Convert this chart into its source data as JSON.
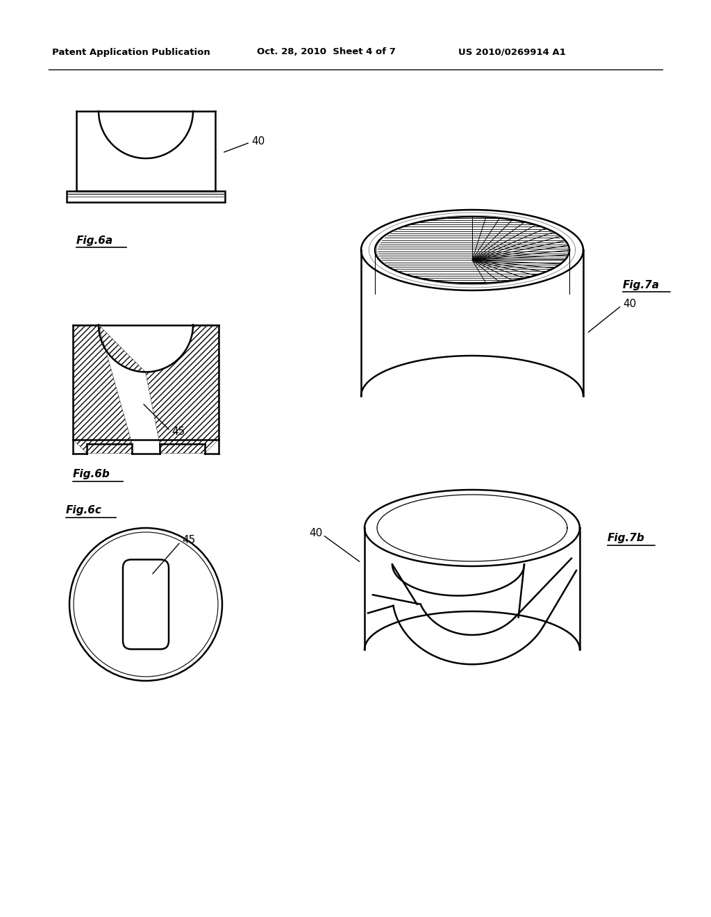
{
  "header_left": "Patent Application Publication",
  "header_mid": "Oct. 28, 2010  Sheet 4 of 7",
  "header_right": "US 2010/0269914 A1",
  "fig6a_label": "Fig.6a",
  "fig6b_label": "Fig.6b",
  "fig6c_label": "Fig.6c",
  "fig7a_label": "Fig.7a",
  "fig7b_label": "Fig.7b",
  "label_40": "40",
  "label_45": "45",
  "bg_color": "#ffffff",
  "line_color": "#000000"
}
